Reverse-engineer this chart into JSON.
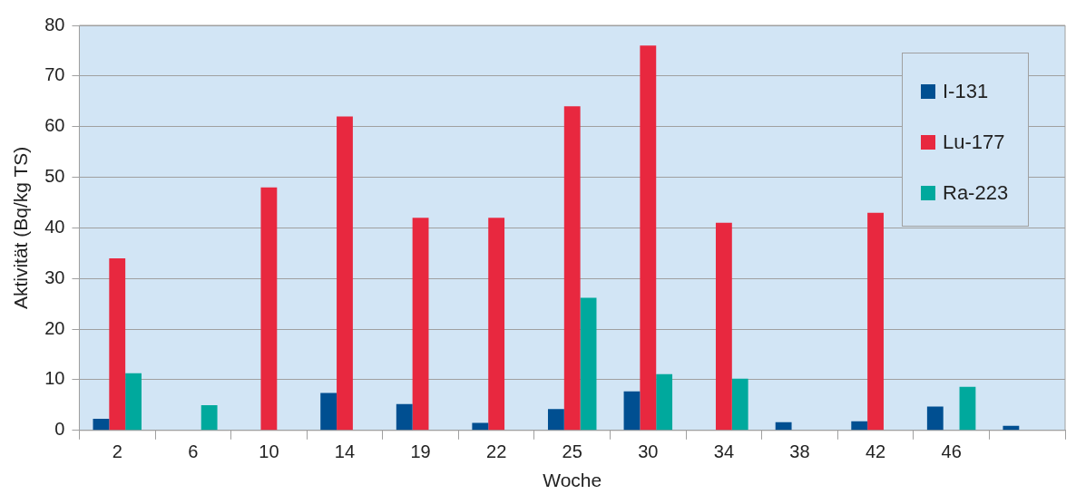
{
  "chart_data": {
    "type": "bar",
    "xlabel": "Woche",
    "ylabel": "Aktivität (Bq/kg TS)",
    "categories": [
      "2",
      "6",
      "10",
      "14",
      "19",
      "22",
      "25",
      "30",
      "34",
      "38",
      "42",
      "46",
      null
    ],
    "series": [
      {
        "name": "I-131",
        "color": "#004f91",
        "values": [
          2.3,
          null,
          null,
          7.4,
          5.2,
          1.5,
          4.2,
          7.7,
          null,
          1.6,
          1.8,
          4.7,
          0.9
        ]
      },
      {
        "name": "Lu-177",
        "color": "#e8283f",
        "values": [
          34,
          null,
          48,
          62,
          42,
          42,
          64,
          76,
          41,
          null,
          43,
          null,
          null
        ]
      },
      {
        "name": "Ra-223",
        "color": "#00a99d",
        "values": [
          11.3,
          5,
          null,
          null,
          null,
          null,
          26.2,
          11.1,
          10.2,
          null,
          null,
          8.6,
          null
        ]
      }
    ],
    "ylim": [
      0,
      80
    ],
    "yticks": [
      0,
      10,
      20,
      30,
      40,
      50,
      60,
      70,
      80
    ],
    "grid": "y",
    "legend": "top right"
  }
}
